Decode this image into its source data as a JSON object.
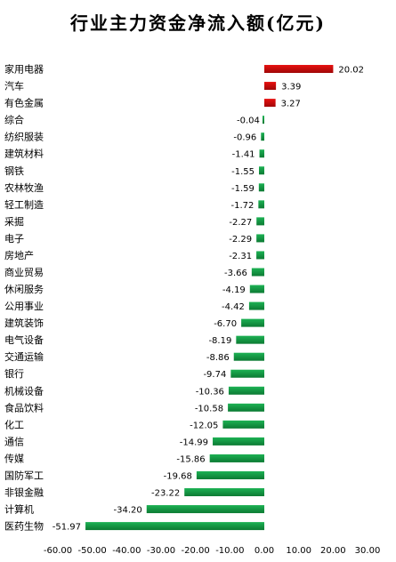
{
  "chart_data": {
    "type": "bar",
    "orientation": "horizontal",
    "title": "行业主力资金净流入额(亿元)",
    "categories": [
      "家用电器",
      "汽车",
      "有色金属",
      "综合",
      "纺织服装",
      "建筑材料",
      "钢铁",
      "农林牧渔",
      "轻工制造",
      "采掘",
      "电子",
      "房地产",
      "商业贸易",
      "休闲服务",
      "公用事业",
      "建筑装饰",
      "电气设备",
      "交通运输",
      "银行",
      "机械设备",
      "食品饮料",
      "化工",
      "通信",
      "传媒",
      "国防军工",
      "非银金融",
      "计算机",
      "医药生物"
    ],
    "values": [
      20.02,
      3.39,
      3.27,
      -0.04,
      -0.96,
      -1.41,
      -1.55,
      -1.59,
      -1.72,
      -2.27,
      -2.29,
      -2.31,
      -3.66,
      -4.19,
      -4.42,
      -6.7,
      -8.19,
      -8.86,
      -9.74,
      -10.36,
      -10.58,
      -12.05,
      -14.99,
      -15.86,
      -19.68,
      -23.22,
      -34.2,
      -51.97
    ],
    "value_labels": [
      "20.02",
      "3.39",
      "3.27",
      "-0.04",
      "-0.96",
      "-1.41",
      "-1.55",
      "-1.59",
      "-1.72",
      "-2.27",
      "-2.29",
      "-2.31",
      "-3.66",
      "-4.19",
      "-4.42",
      "-6.70",
      "-8.19",
      "-8.86",
      "-9.74",
      "-10.36",
      "-10.58",
      "-12.05",
      "-14.99",
      "-15.86",
      "-19.68",
      "-23.22",
      "-34.20",
      "-51.97"
    ],
    "xlim": [
      -60,
      30
    ],
    "x_ticks": [
      -60,
      -50,
      -40,
      -30,
      -20,
      -10,
      0,
      10,
      20,
      30
    ],
    "x_tick_labels": [
      "-60.00",
      "-50.00",
      "-40.00",
      "-30.00",
      "-20.00",
      "-10.00",
      "0.00",
      "10.00",
      "20.00",
      "30.00"
    ],
    "xlabel": "",
    "ylabel": "",
    "grid": false,
    "legend": "none",
    "colors": {
      "positive": "#e8100f",
      "positive_dark": "#a00808",
      "negative": "#1db254",
      "negative_dark": "#0c7a33"
    }
  }
}
